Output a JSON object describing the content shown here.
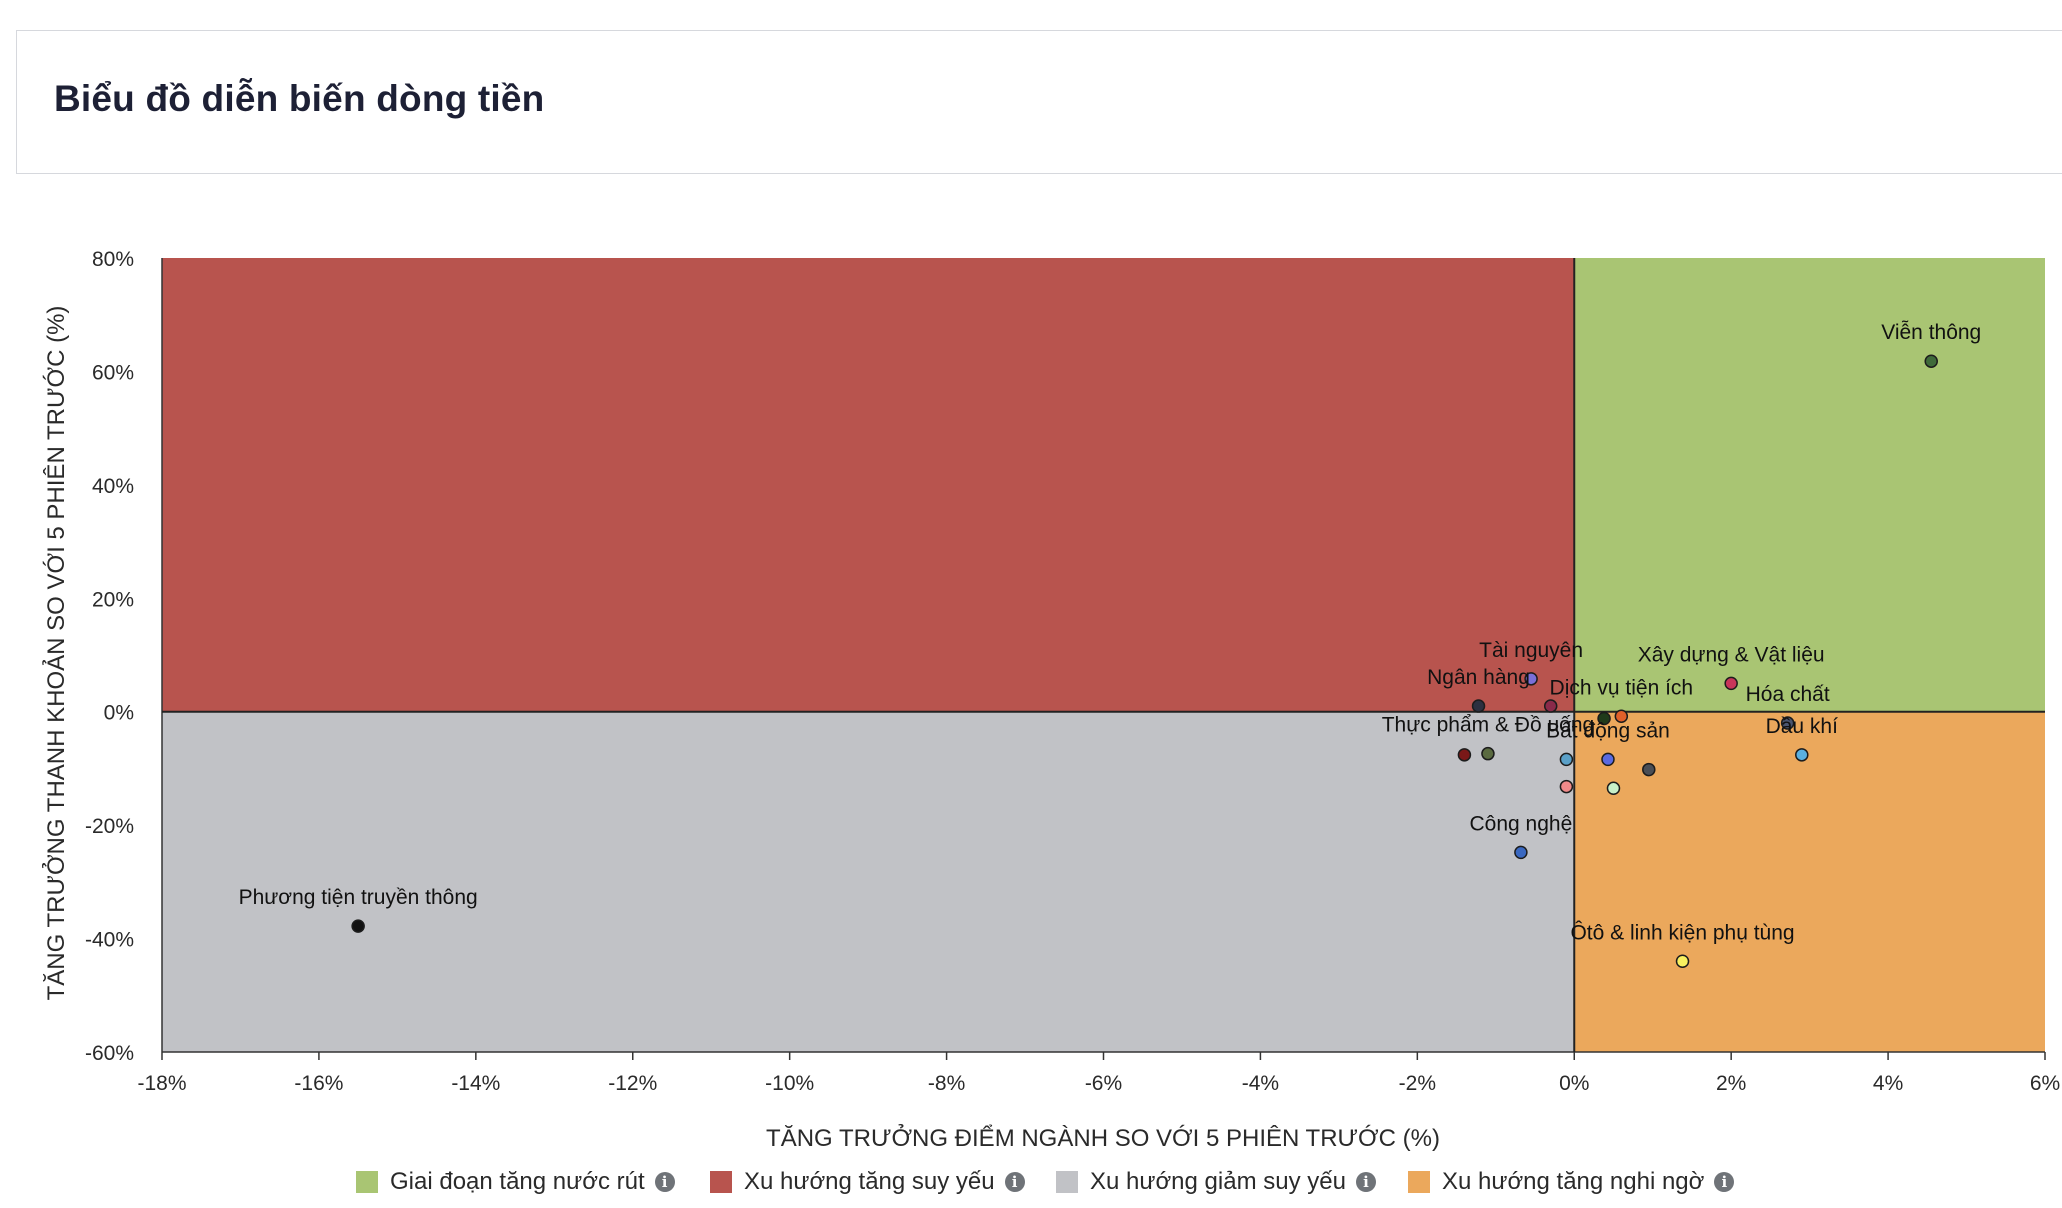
{
  "page": {
    "title": "Biểu đồ diễn biến dòng tiền"
  },
  "chart_data": {
    "type": "scatter",
    "xlabel": "TĂNG TRƯỞNG ĐIỂM NGÀNH SO VỚI 5 PHIÊN TRƯỚC (%)",
    "ylabel": "TĂNG TRƯỞNG THANH KHOẢN SO VỚI 5 PHIÊN TRƯỚC (%)",
    "xlim": [
      -18,
      6
    ],
    "ylim": [
      -60,
      80
    ],
    "x_ticks": [
      "-18%",
      "-16%",
      "-14%",
      "-12%",
      "-10%",
      "-8%",
      "-6%",
      "-4%",
      "-2%",
      "0%",
      "2%",
      "4%",
      "6%"
    ],
    "y_ticks": [
      "80%",
      "60%",
      "40%",
      "20%",
      "0%",
      "-20%",
      "-40%",
      "-60%"
    ],
    "grid": false,
    "legend_position": "bottom",
    "quadrants": [
      {
        "name": "Giai đoạn tăng nước rút",
        "color": "#a9c573",
        "x_range": [
          0,
          6
        ],
        "y_range": [
          0,
          80
        ]
      },
      {
        "name": "Xu hướng tăng suy yếu",
        "color": "#b8544e",
        "x_range": [
          -18,
          0
        ],
        "y_range": [
          0,
          80
        ]
      },
      {
        "name": "Xu hướng giảm suy yếu",
        "color": "#c1c2c6",
        "x_range": [
          -18,
          0
        ],
        "y_range": [
          -60,
          0
        ]
      },
      {
        "name": "Xu hướng tăng nghi ngờ",
        "color": "#eba85c",
        "x_range": [
          0,
          6
        ],
        "y_range": [
          -60,
          0
        ]
      }
    ],
    "points": [
      {
        "label": "Viễn thông",
        "x": 4.55,
        "y": 61.8,
        "color": "#3f6a3a"
      },
      {
        "label": "Tài nguyên",
        "x": -0.55,
        "y": 5.8,
        "color": "#7b6fd8"
      },
      {
        "label": "Ngân hàng",
        "x": -1.22,
        "y": 1.0,
        "color": "#2b3040"
      },
      {
        "label": "",
        "x": -0.3,
        "y": 1.0,
        "color": "#8a2a4a"
      },
      {
        "label": "Xây dựng & Vật liệu",
        "x": 2.0,
        "y": 5.0,
        "color": "#c8365a"
      },
      {
        "label": "Dịch vụ tiện ích",
        "x": 0.6,
        "y": -0.8,
        "color": "#e0602a"
      },
      {
        "label": "",
        "x": 0.38,
        "y": -1.2,
        "color": "#1f3a1a"
      },
      {
        "label": "Hóa chất",
        "x": 2.72,
        "y": -2.0,
        "color": "#4a5570"
      },
      {
        "label": "Dầu khí",
        "x": 2.9,
        "y": -7.6,
        "color": "#5ab0e0"
      },
      {
        "label": "Thực phẩm & Đồ uống",
        "x": -1.1,
        "y": -7.4,
        "color": "#5a6a40"
      },
      {
        "label": "",
        "x": -1.4,
        "y": -7.6,
        "color": "#7a1818"
      },
      {
        "label": "",
        "x": -0.1,
        "y": -8.4,
        "color": "#5aa0c8"
      },
      {
        "label": "Bất động sản",
        "x": 0.43,
        "y": -8.4,
        "color": "#5a6ae0"
      },
      {
        "label": "",
        "x": 0.95,
        "y": -10.2,
        "color": "#4a4e55"
      },
      {
        "label": "",
        "x": -0.1,
        "y": -13.2,
        "color": "#f08a8a"
      },
      {
        "label": "",
        "x": 0.5,
        "y": -13.5,
        "color": "#c8f0c8"
      },
      {
        "label": "Công nghệ",
        "x": -0.68,
        "y": -24.8,
        "color": "#3a68c0"
      },
      {
        "label": "Phương tiện truyền thông",
        "x": -15.5,
        "y": -37.8,
        "color": "#111111"
      },
      {
        "label": "Ôtô & linh kiện phụ tùng",
        "x": 1.38,
        "y": -44.0,
        "color": "#f8f060"
      }
    ]
  },
  "legend": {
    "items": [
      {
        "label": "Giai đoạn tăng nước rút",
        "color": "#a9c573",
        "info_icon": "info-icon"
      },
      {
        "label": "Xu hướng tăng suy yếu",
        "color": "#b8544e",
        "info_icon": "info-icon"
      },
      {
        "label": "Xu hướng giảm suy yếu",
        "color": "#c1c2c6",
        "info_icon": "info-icon"
      },
      {
        "label": "Xu hướng tăng nghi ngờ",
        "color": "#eba85c",
        "info_icon": "info-icon"
      }
    ]
  }
}
